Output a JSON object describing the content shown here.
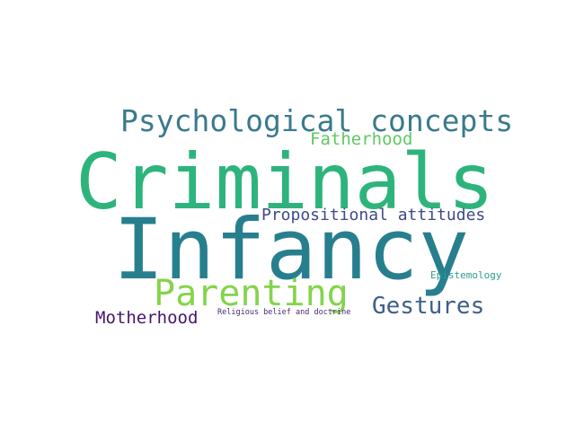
{
  "words": {
    "criminals": {
      "text": "Criminals",
      "color": "#2db47c"
    },
    "infancy": {
      "text": "Infancy",
      "color": "#277f8e"
    },
    "psychological": {
      "text": "Psychological concepts",
      "color": "#3a7a8c"
    },
    "parenting": {
      "text": "Parenting",
      "color": "#84d44b"
    },
    "fatherhood": {
      "text": "Fatherhood",
      "color": "#5ec962"
    },
    "propositional": {
      "text": "Propositional attitudes",
      "color": "#3e4a89"
    },
    "gestures": {
      "text": "Gestures",
      "color": "#3e5f8a"
    },
    "motherhood": {
      "text": "Motherhood",
      "color": "#46166b"
    },
    "epistemology": {
      "text": "Epistemology",
      "color": "#2a9d8f"
    },
    "religious": {
      "text": "Religious belief and doctrine",
      "color": "#482878"
    }
  }
}
